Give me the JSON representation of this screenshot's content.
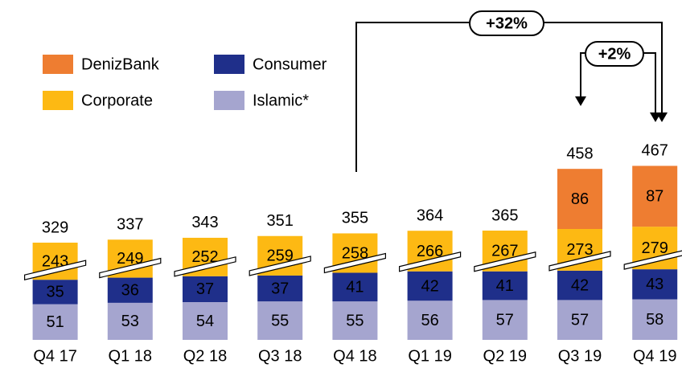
{
  "chart_data": {
    "type": "bar",
    "stacked": true,
    "categories": [
      "Q4 17",
      "Q1 18",
      "Q2 18",
      "Q3 18",
      "Q4 18",
      "Q1 19",
      "Q2 19",
      "Q3 19",
      "Q4 19"
    ],
    "series": [
      {
        "name": "Islamic*",
        "color": "#a5a5cf",
        "values": [
          51,
          53,
          54,
          55,
          55,
          56,
          57,
          57,
          58
        ]
      },
      {
        "name": "Consumer",
        "color": "#1f2f8a",
        "values": [
          35,
          36,
          37,
          37,
          41,
          42,
          41,
          42,
          43
        ]
      },
      {
        "name": "Corporate",
        "color": "#fdb913",
        "break": true,
        "values": [
          243,
          249,
          252,
          259,
          258,
          266,
          267,
          273,
          279
        ]
      },
      {
        "name": "DenizBank",
        "color": "#ee7d31",
        "values": [
          null,
          null,
          null,
          null,
          null,
          null,
          null,
          86,
          87
        ]
      }
    ],
    "totals": [
      329,
      337,
      343,
      351,
      355,
      364,
      365,
      458,
      467
    ],
    "annotations": [
      "+32%",
      "+2%"
    ]
  }
}
